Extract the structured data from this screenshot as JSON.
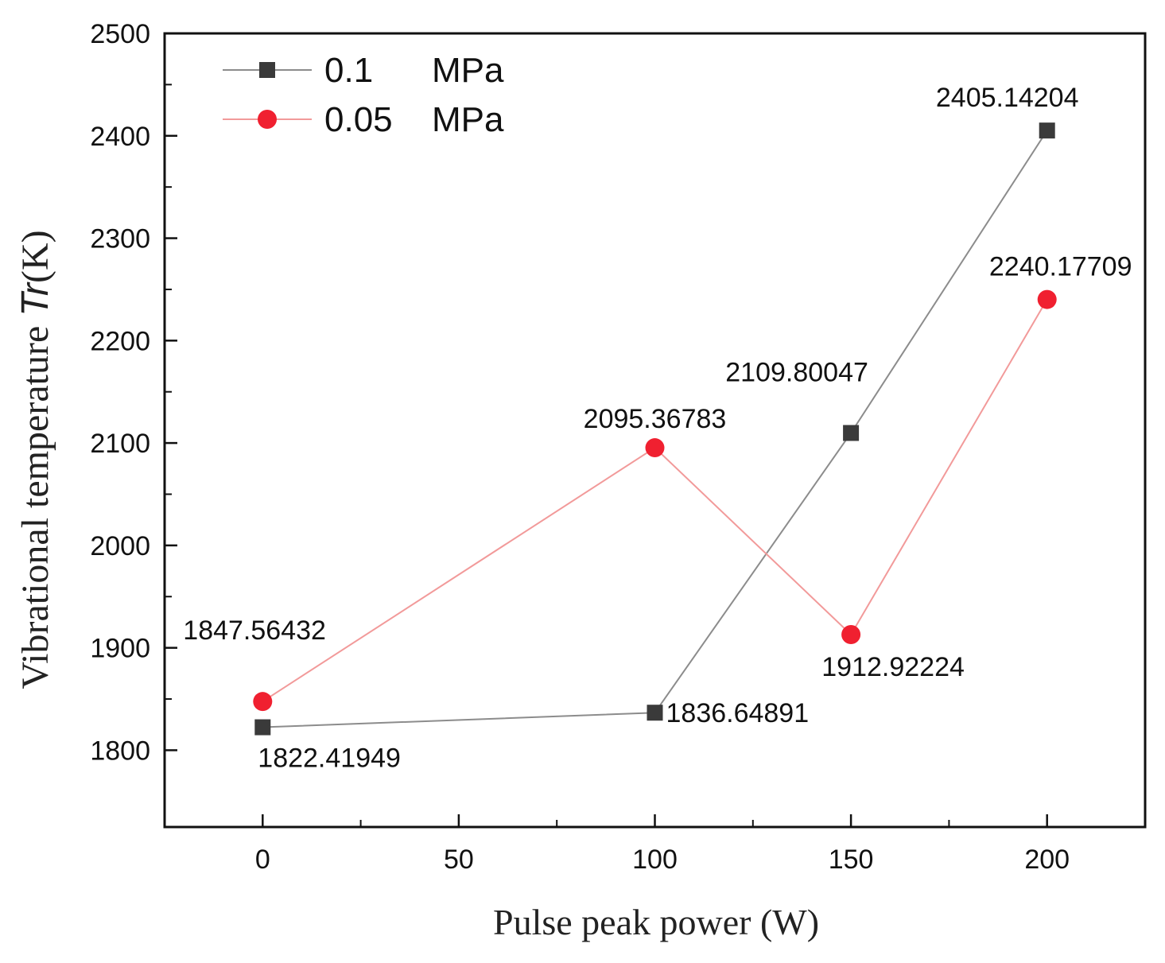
{
  "chart_data": {
    "type": "line",
    "title": "",
    "xlabel": "Pulse peak power (W)",
    "ylabel": {
      "prefix": "Vibrational temperature ",
      "symbol": "Tr",
      "suffix": "(K)"
    },
    "xlim": [
      -25,
      225
    ],
    "ylim": [
      1725,
      2500
    ],
    "xticks": [
      0,
      50,
      100,
      150,
      200
    ],
    "yticks": [
      1800,
      1900,
      2000,
      2100,
      2200,
      2300,
      2400,
      2500
    ],
    "grid": false,
    "legend_position": "top-left",
    "series": [
      {
        "name": "0.1 MPa",
        "legend_value": "0.1",
        "legend_unit": "MPa",
        "marker": "square",
        "marker_color": "#3a3a3a",
        "line_color": "#8c8c8c",
        "x": [
          0,
          100,
          150,
          200
        ],
        "values": [
          1822.41949,
          1836.64891,
          2109.80047,
          2405.14204
        ],
        "labels": [
          "1822.41949",
          "1836.64891",
          "2109.80047",
          "2405.14204"
        ]
      },
      {
        "name": "0.05 MPa",
        "legend_value": "0.05",
        "legend_unit": "MPa",
        "marker": "circle",
        "marker_color": "#f02030",
        "line_color": "#f29a9a",
        "x": [
          0,
          100,
          150,
          200
        ],
        "values": [
          1847.56432,
          2095.36783,
          1912.92224,
          2240.17709
        ],
        "labels": [
          "1847.56432",
          "2095.36783",
          "1912.92224",
          "2240.17709"
        ]
      }
    ]
  }
}
